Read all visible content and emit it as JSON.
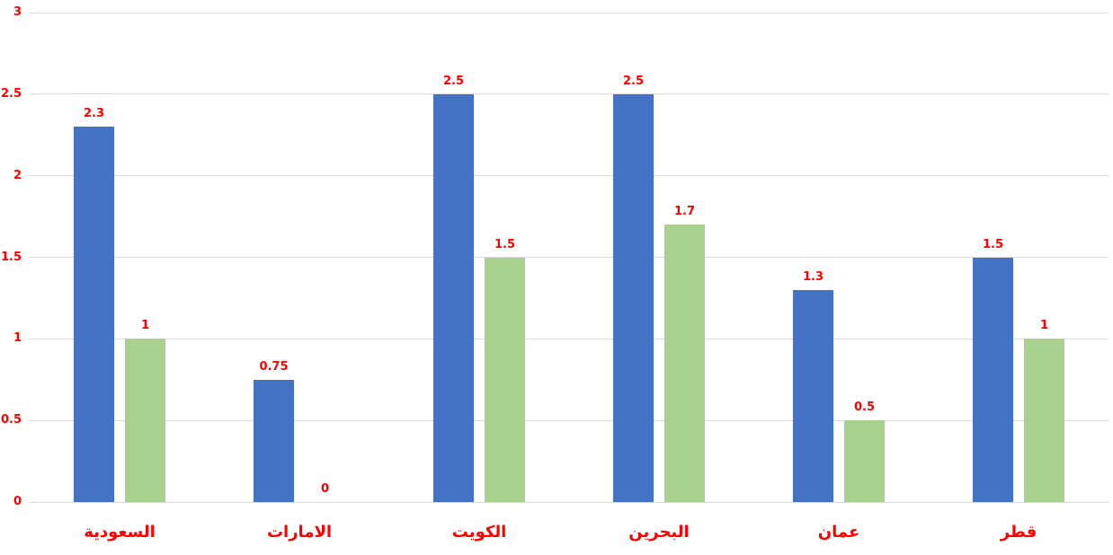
{
  "chart_data": {
    "type": "bar",
    "title": "",
    "xlabel": "",
    "ylabel": "",
    "categories": [
      "السعودية",
      "الامارات",
      "الكويت",
      "البحرين",
      "عمان",
      "قطر"
    ],
    "series": [
      {
        "name": "series-1-blue",
        "color": "#4472C4",
        "values": [
          2.3,
          0.75,
          2.5,
          2.5,
          1.3,
          1.5
        ],
        "labels": [
          "2.3",
          "0.75",
          "2.5",
          "2.5",
          "1.3",
          "1.5"
        ]
      },
      {
        "name": "series-2-green",
        "color": "#A9D18E",
        "values": [
          1,
          0,
          1.5,
          1.7,
          0.5,
          1
        ],
        "labels": [
          "1",
          "0",
          "1.5",
          "1.7",
          "0.5",
          "1"
        ]
      }
    ],
    "y_ticks": [
      "3",
      "2.5",
      "2",
      "1.5",
      "1",
      "0.5",
      "0"
    ],
    "ylim": [
      0,
      3
    ],
    "grid": true,
    "legend": "none",
    "colors": {
      "data_label": "#FF0000",
      "category_label": "#FF0000",
      "axis_label": "#FF0000",
      "gridline": "#D9D9D9",
      "background": "#FFFFFF"
    }
  }
}
